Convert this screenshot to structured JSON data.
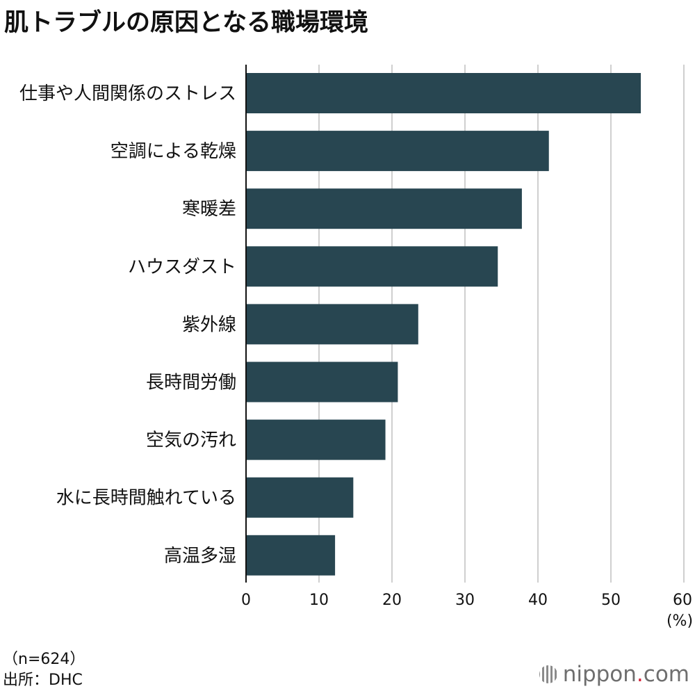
{
  "title": "肌トラブルの原因となる職場環境",
  "chart_data": {
    "type": "bar",
    "orientation": "horizontal",
    "categories": [
      "仕事や人間関係のストレス",
      "空調による乾燥",
      "寒暖差",
      "ハウスダスト",
      "紫外線",
      "長時間労働",
      "空気の汚れ",
      "水に長時間触れている",
      "高温多湿"
    ],
    "values": [
      54.1,
      41.5,
      37.8,
      34.5,
      23.6,
      20.8,
      19.1,
      14.7,
      12.2
    ],
    "xlim": [
      0,
      60
    ],
    "xticks": [
      0,
      10,
      20,
      30,
      40,
      50,
      60
    ],
    "xunit": "(%)",
    "grid": true,
    "bar_color": "#284651"
  },
  "footer": {
    "note": "（n=624）",
    "source": "出所：DHC"
  },
  "brand": {
    "name": "nippon",
    "dot": ".",
    "tld": "com"
  }
}
